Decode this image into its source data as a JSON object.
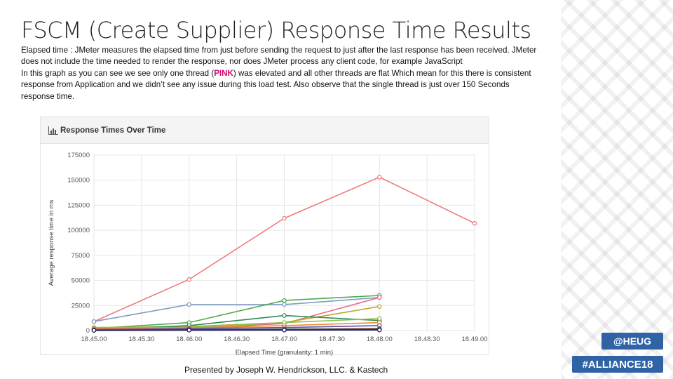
{
  "slide": {
    "title": "FSCM (Create Supplier) Response Time Results",
    "para1": "Elapsed time : JMeter measures the elapsed time from just before sending the request to just after the last response has been received. JMeter does not include the time needed to render the response, nor does JMeter process any client code, for example JavaScript",
    "para2_before": "In this graph as you can see we see only one thread (",
    "para2_pink": "PINK",
    "para2_after": ") was elevated and all other threads are flat Which mean for this there is consistent response from Application and we didn’t see any issue during this load test. Also observe that the single thread is just over 150 Seconds response time.",
    "footer": "Presented by Joseph W. Hendrickson, LLC. & Kastech",
    "badge_heug": "@HEUG",
    "badge_alliance": "#ALLIANCE18"
  },
  "chart_panel": {
    "header_icon": "bar-chart-icon",
    "header_title": "Response Times Over Time"
  },
  "chart_data": {
    "type": "line",
    "title": "Response Times Over Time",
    "xlabel": "Elapsed Time (granularity: 1 min)",
    "ylabel": "Average response time in ms",
    "x_ticks": [
      "18.45.00",
      "18.45.30",
      "18.46.00",
      "18.46.30",
      "18.47.00",
      "18.47.30",
      "18.48.00",
      "18.48.30",
      "18.49.00"
    ],
    "y_ticks": [
      0,
      25000,
      50000,
      75000,
      100000,
      125000,
      150000,
      175000
    ],
    "ylim": [
      0,
      175000
    ],
    "grid": true,
    "legend": "none",
    "series": [
      {
        "color": "#f07c7c",
        "points": [
          [
            "18.45.00",
            9000
          ],
          [
            "18.46.00",
            51000
          ],
          [
            "18.47.00",
            112000
          ],
          [
            "18.48.00",
            153000
          ],
          [
            "18.49.00",
            107000
          ]
        ]
      },
      {
        "color": "#7f9cc4",
        "points": [
          [
            "18.45.00",
            9000
          ],
          [
            "18.46.00",
            26000
          ],
          [
            "18.47.00",
            26000
          ],
          [
            "18.48.00",
            33000
          ]
        ]
      },
      {
        "color": "#4fa84f",
        "points": [
          [
            "18.45.00",
            2000
          ],
          [
            "18.46.00",
            8000
          ],
          [
            "18.47.00",
            30000
          ],
          [
            "18.48.00",
            35000
          ]
        ]
      },
      {
        "color": "#e66b8a",
        "points": [
          [
            "18.45.00",
            1000
          ],
          [
            "18.46.00",
            2000
          ],
          [
            "18.47.00",
            7000
          ],
          [
            "18.48.00",
            33000
          ]
        ]
      },
      {
        "color": "#c2a329",
        "points": [
          [
            "18.45.00",
            3000
          ],
          [
            "18.46.00",
            4000
          ],
          [
            "18.47.00",
            8000
          ],
          [
            "18.48.00",
            24000
          ]
        ]
      },
      {
        "color": "#2e8b57",
        "points": [
          [
            "18.45.00",
            1000
          ],
          [
            "18.46.00",
            5000
          ],
          [
            "18.47.00",
            15000
          ],
          [
            "18.48.00",
            10000
          ]
        ]
      },
      {
        "color": "#8bc34a",
        "points": [
          [
            "18.45.00",
            3000
          ],
          [
            "18.46.00",
            3000
          ],
          [
            "18.47.00",
            8000
          ],
          [
            "18.48.00",
            12000
          ]
        ]
      },
      {
        "color": "#e88a2c",
        "points": [
          [
            "18.45.00",
            2000
          ],
          [
            "18.46.00",
            2500
          ],
          [
            "18.47.00",
            5000
          ],
          [
            "18.48.00",
            8000
          ]
        ]
      },
      {
        "color": "#6a4fa0",
        "points": [
          [
            "18.45.00",
            1000
          ],
          [
            "18.46.00",
            2000
          ],
          [
            "18.47.00",
            3000
          ],
          [
            "18.48.00",
            5000
          ]
        ]
      },
      {
        "color": "#555555",
        "points": [
          [
            "18.45.00",
            500
          ],
          [
            "18.46.00",
            1000
          ],
          [
            "18.47.00",
            1500
          ],
          [
            "18.48.00",
            2000
          ]
        ]
      },
      {
        "color": "#9c2b2b",
        "points": [
          [
            "18.45.00",
            300
          ],
          [
            "18.46.00",
            600
          ],
          [
            "18.47.00",
            800
          ],
          [
            "18.48.00",
            1200
          ]
        ]
      },
      {
        "color": "#1a1a5e",
        "points": [
          [
            "18.45.00",
            200
          ],
          [
            "18.46.00",
            400
          ],
          [
            "18.47.00",
            500
          ],
          [
            "18.48.00",
            600
          ]
        ]
      }
    ]
  }
}
